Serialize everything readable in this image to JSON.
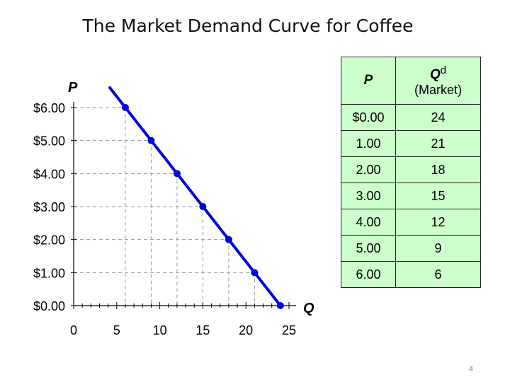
{
  "slide": {
    "title": "The Market Demand Curve for Coffee",
    "page_number": "4"
  },
  "table": {
    "header_p": "P",
    "header_q": "Q",
    "header_q_sup": "d",
    "header_q_sub": "(Market)",
    "rows": [
      {
        "p": "$0.00",
        "q": "24"
      },
      {
        "p": "1.00",
        "q": "21"
      },
      {
        "p": "2.00",
        "q": "18"
      },
      {
        "p": "3.00",
        "q": "15"
      },
      {
        "p": "4.00",
        "q": "12"
      },
      {
        "p": "5.00",
        "q": "9"
      },
      {
        "p": "6.00",
        "q": "6"
      }
    ]
  },
  "chart_data": {
    "type": "line",
    "title": "",
    "xlabel": "Q",
    "ylabel": "P",
    "xlim": [
      0,
      25
    ],
    "ylim": [
      0,
      6
    ],
    "x_ticks": [
      0,
      5,
      10,
      15,
      20,
      25
    ],
    "x_tick_labels": [
      "0",
      "5",
      "10",
      "15",
      "20",
      "25"
    ],
    "y_ticks": [
      0,
      1,
      2,
      3,
      4,
      5,
      6
    ],
    "y_tick_labels": [
      "$0.00",
      "$1.00",
      "$2.00",
      "$3.00",
      "$4.00",
      "$5.00",
      "$6.00"
    ],
    "x_minor_step": 1,
    "grid": "dashed guides from points to axes",
    "line_color": "#0000dd",
    "series": [
      {
        "points": [
          {
            "x": 24,
            "y": 0
          },
          {
            "x": 21,
            "y": 1
          },
          {
            "x": 18,
            "y": 2
          },
          {
            "x": 15,
            "y": 3
          },
          {
            "x": 12,
            "y": 4
          },
          {
            "x": 9,
            "y": 5
          },
          {
            "x": 6,
            "y": 6
          }
        ],
        "line_start": {
          "x": 4.2,
          "y": 6.6
        }
      }
    ]
  }
}
